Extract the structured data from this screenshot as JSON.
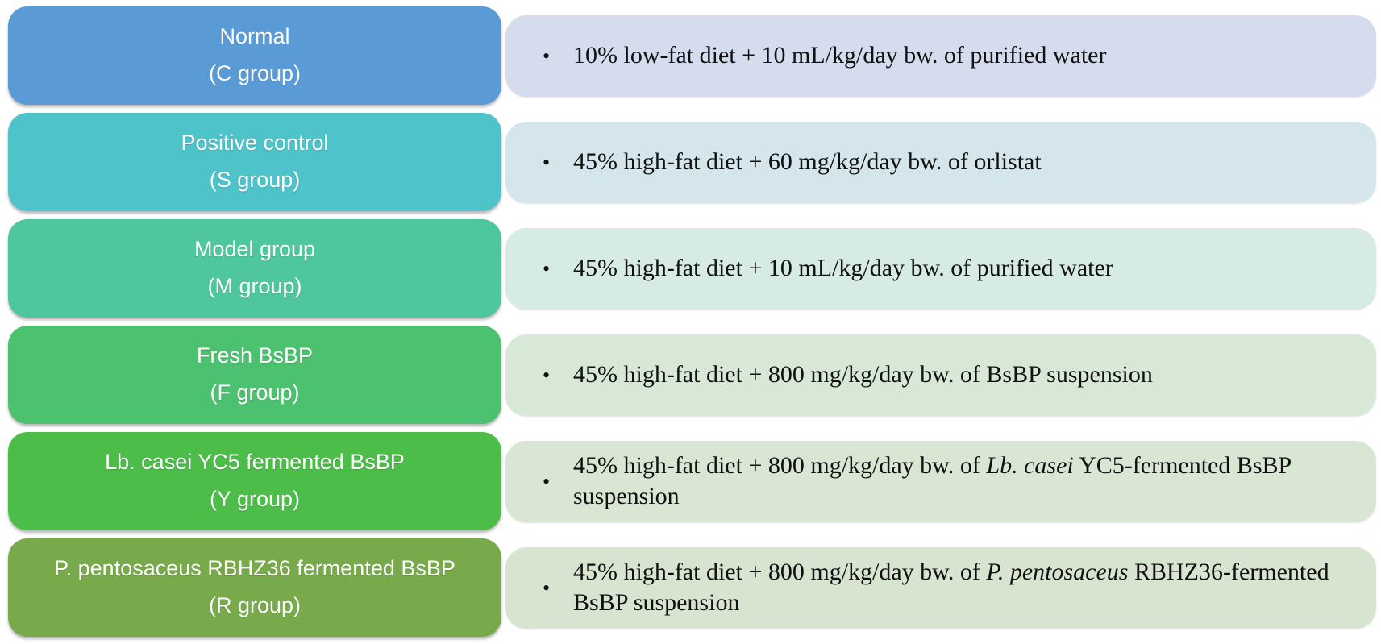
{
  "figure": {
    "bullet": "•",
    "rows": [
      {
        "group_name": "Normal",
        "group_code": "(C group)",
        "box_color": "#5B9BD5",
        "panel_color": "#D5DCEE",
        "description": [
          {
            "text": "10% low-fat diet + 10 mL/kg/day bw. of purified water",
            "italic": false
          }
        ]
      },
      {
        "group_name": "Positive control",
        "group_code": "(S group)",
        "box_color": "#4FC3CA",
        "panel_color": "#D4E6EC",
        "description": [
          {
            "text": "45% high-fat diet + 60 mg/kg/day bw. of orlistat",
            "italic": false
          }
        ]
      },
      {
        "group_name": "Model group",
        "group_code": "(M group)",
        "box_color": "#4EC79E",
        "panel_color": "#D5EBE3",
        "description": [
          {
            "text": "45% high-fat diet + 10 mL/kg/day bw. of purified water",
            "italic": false
          }
        ]
      },
      {
        "group_name": "Fresh BsBP",
        "group_code": "(F group)",
        "box_color": "#4CC170",
        "panel_color": "#D7E8D7",
        "description": [
          {
            "text": "45% high-fat diet + 800 mg/kg/day bw. of BsBP suspension",
            "italic": false
          }
        ]
      },
      {
        "group_name": "Lb. casei YC5 fermented BsBP",
        "group_code": "(Y group)",
        "box_color": "#4CBD49",
        "panel_color": "#D8E6D3",
        "description": [
          {
            "text": "45% high-fat diet + 800 mg/kg/day bw. of ",
            "italic": false
          },
          {
            "text": "Lb. casei",
            "italic": true
          },
          {
            "text": " YC5-fermented BsBP suspension",
            "italic": false
          }
        ]
      },
      {
        "group_name": "P. pentosaceus RBHZ36 fermented BsBP",
        "group_code": "(R group)",
        "box_color": "#78AA4C",
        "panel_color": "#D7E4D0",
        "description": [
          {
            "text": "45% high-fat diet + 800 mg/kg/day bw. of ",
            "italic": false
          },
          {
            "text": "P. pentosaceus",
            "italic": true
          },
          {
            "text": " RBHZ36-fermented BsBP suspension",
            "italic": false
          }
        ]
      }
    ]
  }
}
